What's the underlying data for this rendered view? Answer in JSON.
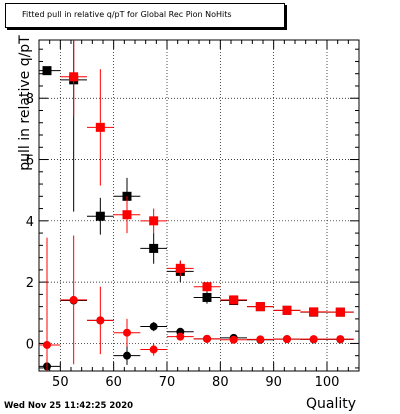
{
  "chart_data": {
    "type": "scatter",
    "title": "Fitted pull in relative q/pT for Global Rec Pion NoHits",
    "xlabel": "Quality",
    "ylabel": "pull in relative q/pT",
    "xlim": [
      46,
      106
    ],
    "ylim": [
      -0.9,
      9.9
    ],
    "xticks": [
      50,
      60,
      70,
      80,
      90,
      100
    ],
    "yticks": [
      0,
      2,
      4,
      6,
      8
    ],
    "grid": true,
    "legend": "none",
    "series": [
      {
        "color": "#000000",
        "marker": "square",
        "points": [
          {
            "x": 47.5,
            "y": 8.9,
            "xerr": 2.5,
            "yerr": 0
          },
          {
            "x": 52.5,
            "y": 8.6,
            "xerr": 2.5,
            "yerr": 4.3
          },
          {
            "x": 57.5,
            "y": 4.15,
            "xerr": 2.5,
            "yerr": 0.6
          },
          {
            "x": 62.5,
            "y": 4.8,
            "xerr": 2.5,
            "yerr": 0.6
          },
          {
            "x": 67.5,
            "y": 3.1,
            "xerr": 2.5,
            "yerr": 0.5
          },
          {
            "x": 72.5,
            "y": 2.35,
            "xerr": 2.5,
            "yerr": 0.35
          },
          {
            "x": 77.5,
            "y": 1.5,
            "xerr": 2.5,
            "yerr": 0.2
          },
          {
            "x": 82.5,
            "y": 1.4,
            "xerr": 2.5,
            "yerr": 0.1
          },
          {
            "x": 87.5,
            "y": 1.2,
            "xerr": 2.5,
            "yerr": 0.08
          },
          {
            "x": 92.5,
            "y": 1.08,
            "xerr": 2.5,
            "yerr": 0.05
          },
          {
            "x": 97.5,
            "y": 1.02,
            "xerr": 2.5,
            "yerr": 0.04
          },
          {
            "x": 102.5,
            "y": 1.02,
            "xerr": 2.5,
            "yerr": 0.03
          }
        ]
      },
      {
        "color": "#ff0000",
        "marker": "square",
        "points": [
          {
            "x": 52.5,
            "y": 8.7,
            "xerr": 2.5,
            "yerr": 1.3
          },
          {
            "x": 57.5,
            "y": 7.05,
            "xerr": 2.5,
            "yerr": 1.9
          },
          {
            "x": 62.5,
            "y": 4.2,
            "xerr": 2.5,
            "yerr": 0.6
          },
          {
            "x": 67.5,
            "y": 4.0,
            "xerr": 2.5,
            "yerr": 0.4
          },
          {
            "x": 72.5,
            "y": 2.45,
            "xerr": 2.5,
            "yerr": 0.25
          },
          {
            "x": 77.5,
            "y": 1.85,
            "xerr": 2.5,
            "yerr": 0.15
          },
          {
            "x": 82.5,
            "y": 1.42,
            "xerr": 2.5,
            "yerr": 0.08
          },
          {
            "x": 87.5,
            "y": 1.2,
            "xerr": 2.5,
            "yerr": 0.06
          },
          {
            "x": 92.5,
            "y": 1.08,
            "xerr": 2.5,
            "yerr": 0.04
          },
          {
            "x": 97.5,
            "y": 1.03,
            "xerr": 2.5,
            "yerr": 0.03
          },
          {
            "x": 102.5,
            "y": 1.02,
            "xerr": 2.5,
            "yerr": 0.03
          }
        ]
      },
      {
        "color": "#000000",
        "marker": "circle",
        "points": [
          {
            "x": 47.5,
            "y": -0.75,
            "xerr": 2.5,
            "yerr": 0
          },
          {
            "x": 52.5,
            "y": 1.4,
            "xerr": 2.5,
            "yerr": 0
          },
          {
            "x": 57.5,
            "y": 0.75,
            "xerr": 2.5,
            "yerr": 0
          },
          {
            "x": 62.5,
            "y": -0.4,
            "xerr": 2.5,
            "yerr": 0.3
          },
          {
            "x": 67.5,
            "y": 0.55,
            "xerr": 2.5,
            "yerr": 0.15
          },
          {
            "x": 72.5,
            "y": 0.38,
            "xerr": 2.5,
            "yerr": 0.08
          },
          {
            "x": 77.5,
            "y": 0.15,
            "xerr": 2.5,
            "yerr": 0.05
          },
          {
            "x": 82.5,
            "y": 0.18,
            "xerr": 2.5,
            "yerr": 0.04
          },
          {
            "x": 87.5,
            "y": 0.12,
            "xerr": 2.5,
            "yerr": 0.03
          },
          {
            "x": 92.5,
            "y": 0.14,
            "xerr": 2.5,
            "yerr": 0.02
          },
          {
            "x": 97.5,
            "y": 0.13,
            "xerr": 2.5,
            "yerr": 0.02
          },
          {
            "x": 102.5,
            "y": 0.13,
            "xerr": 2.5,
            "yerr": 0.02
          }
        ]
      },
      {
        "color": "#ff0000",
        "marker": "circle",
        "points": [
          {
            "x": 47.5,
            "y": -0.05,
            "xerr": 2.5,
            "yerr": 3.5
          },
          {
            "x": 52.5,
            "y": 1.42,
            "xerr": 2.5,
            "yerr": 2.1
          },
          {
            "x": 57.5,
            "y": 0.75,
            "xerr": 2.5,
            "yerr": 1.1
          },
          {
            "x": 62.5,
            "y": 0.35,
            "xerr": 2.5,
            "yerr": 0.45
          },
          {
            "x": 67.5,
            "y": -0.2,
            "xerr": 2.5,
            "yerr": 0.2
          },
          {
            "x": 72.5,
            "y": 0.22,
            "xerr": 2.5,
            "yerr": 0.1
          },
          {
            "x": 77.5,
            "y": 0.15,
            "xerr": 2.5,
            "yerr": 0.06
          },
          {
            "x": 82.5,
            "y": 0.12,
            "xerr": 2.5,
            "yerr": 0.04
          },
          {
            "x": 87.5,
            "y": 0.13,
            "xerr": 2.5,
            "yerr": 0.03
          },
          {
            "x": 92.5,
            "y": 0.14,
            "xerr": 2.5,
            "yerr": 0.02
          },
          {
            "x": 97.5,
            "y": 0.14,
            "xerr": 2.5,
            "yerr": 0.02
          },
          {
            "x": 102.5,
            "y": 0.14,
            "xerr": 2.5,
            "yerr": 0.02
          }
        ]
      }
    ]
  },
  "timestamp": "Wed Nov 25 11:42:25 2020"
}
